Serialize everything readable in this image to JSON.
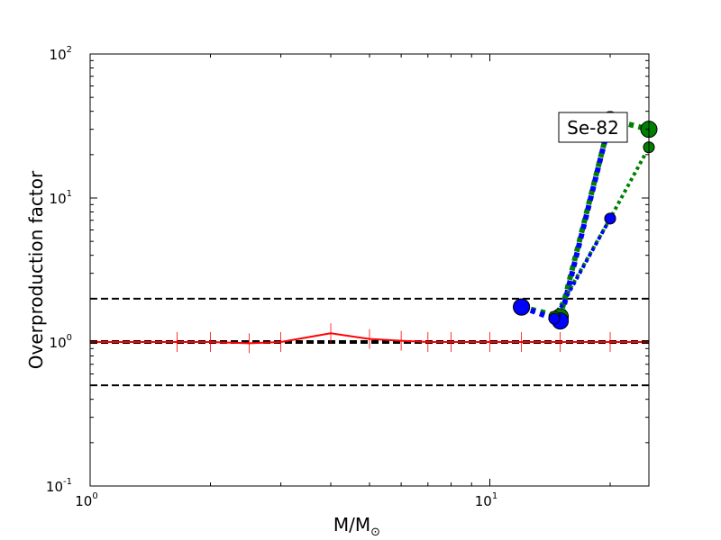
{
  "chart_data": {
    "type": "line",
    "title": "",
    "xlabel": "M/M",
    "xlabel_sub": "⊙",
    "ylabel": "Overproduction factor",
    "x_scale": "log",
    "y_scale": "log",
    "xlim": [
      1,
      25
    ],
    "ylim": [
      0.1,
      100
    ],
    "x_ticks": [
      {
        "value": 1,
        "base": "10",
        "exp": "0"
      },
      {
        "value": 10,
        "base": "10",
        "exp": "1"
      }
    ],
    "y_ticks": [
      {
        "value": 0.1,
        "base": "10",
        "exp": "-1"
      },
      {
        "value": 1,
        "base": "10",
        "exp": "0"
      },
      {
        "value": 10,
        "base": "10",
        "exp": "1"
      },
      {
        "value": 100,
        "base": "10",
        "exp": "2"
      }
    ],
    "grid": false,
    "reference_lines": [
      {
        "y": 2.0,
        "style": "dashed",
        "color": "#000000",
        "width": 2
      },
      {
        "y": 1.0,
        "style": "dashed",
        "color": "#000000",
        "width": 4
      },
      {
        "y": 0.5,
        "style": "dashed",
        "color": "#000000",
        "width": 2
      }
    ],
    "series": [
      {
        "style": "solid",
        "color": "#ff0000",
        "width": 2,
        "marker": "tick",
        "x": [
          1,
          1.65,
          2,
          2.5,
          3,
          4,
          5,
          6,
          7,
          8,
          10,
          12,
          15,
          20,
          25
        ],
        "y": [
          1.0,
          1.0,
          1.0,
          0.98,
          1.0,
          1.15,
          1.05,
          1.02,
          1.0,
          1.0,
          1.0,
          1.0,
          1.0,
          1.0,
          1.0
        ]
      },
      {
        "style": "dotted",
        "color": "#008000",
        "width": 6,
        "marker": "circle",
        "marker_size": 9,
        "x": [
          12,
          15,
          20,
          25
        ],
        "y": [
          1.75,
          1.5,
          35,
          30
        ]
      },
      {
        "style": "dotted",
        "color": "#0000ff",
        "width": 6,
        "marker": "circle",
        "marker_size": 9,
        "x": [
          12,
          15,
          20
        ],
        "y": [
          1.75,
          1.4,
          35
        ]
      },
      {
        "style": "dotted",
        "color": "#008000",
        "width": 4,
        "marker": "circle",
        "marker_size": 6,
        "x": [
          14.5,
          20,
          25
        ],
        "y": [
          1.5,
          7.2,
          22.5
        ]
      },
      {
        "style": "dotted",
        "color": "#0000ff",
        "width": 4,
        "marker": "circle",
        "marker_size": 6,
        "x": [
          14.5,
          20
        ],
        "y": [
          1.45,
          7.2
        ]
      }
    ],
    "annotations": [
      {
        "text": "Se-82",
        "anchor": "top-right",
        "box": true
      }
    ]
  }
}
